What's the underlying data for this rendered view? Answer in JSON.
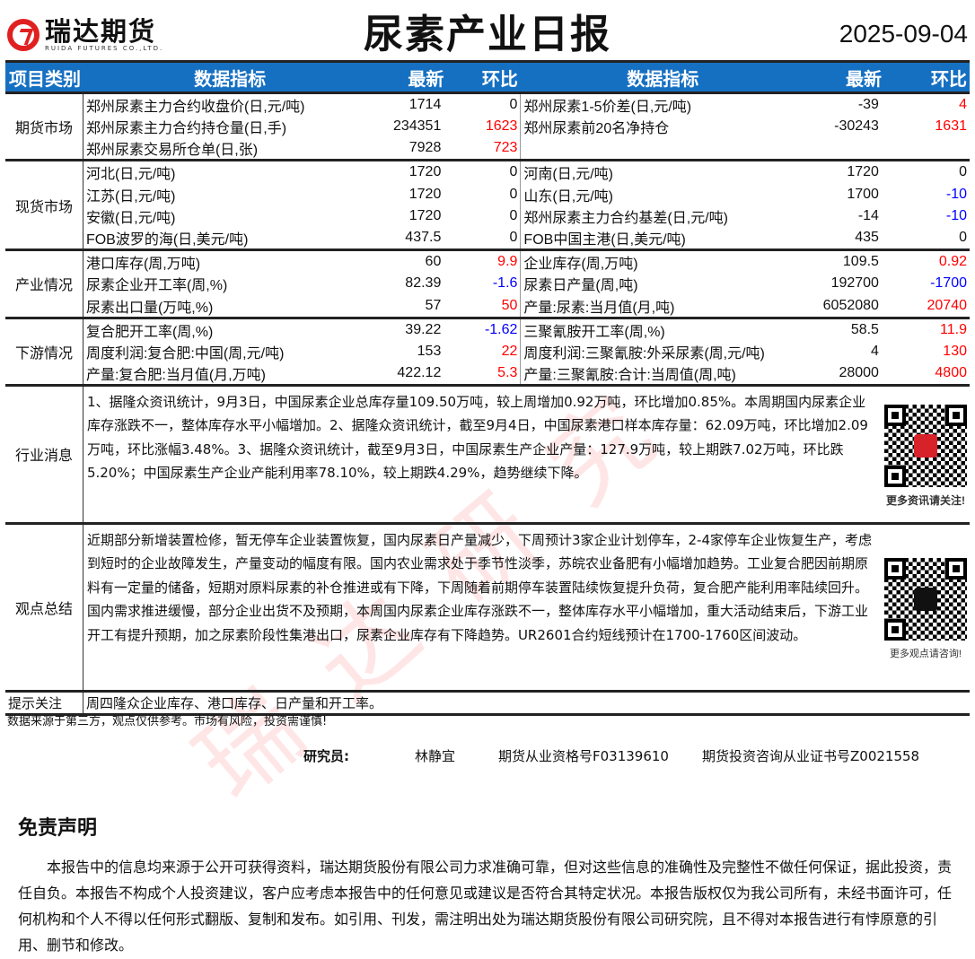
{
  "header": {
    "logo_cn": "瑞达期货",
    "logo_en": "RUIDA FUTURES CO.,LTD.",
    "title": "尿素产业日报",
    "date": "2025-09-04"
  },
  "table_header": {
    "category": "项目类别",
    "indicator": "数据指标",
    "latest": "最新",
    "change": "环比"
  },
  "colors": {
    "header_bg": "#1670c2",
    "up": "#ff0000",
    "down": "#0000ff"
  },
  "sections": [
    {
      "category": "期货市场",
      "rows": [
        {
          "l": [
            "郑州尿素主力合约收盘价(日,元/吨)",
            "1714",
            "0"
          ],
          "r": [
            "郑州尿素1-5价差(日,元/吨)",
            "-39",
            "4"
          ]
        },
        {
          "l": [
            "郑州尿素主力合约持仓量(日,手)",
            "234351",
            "1623"
          ],
          "r": [
            "郑州尿素前20名净持仓",
            "-30243",
            "1631"
          ]
        },
        {
          "l": [
            "郑州尿素交易所仓单(日,张)",
            "7928",
            "723"
          ],
          "r": [
            "",
            "",
            ""
          ]
        }
      ]
    },
    {
      "category": "现货市场",
      "rows": [
        {
          "l": [
            "河北(日,元/吨)",
            "1720",
            "0"
          ],
          "r": [
            "河南(日,元/吨)",
            "1720",
            "0"
          ]
        },
        {
          "l": [
            "江苏(日,元/吨)",
            "1720",
            "0"
          ],
          "r": [
            "山东(日,元/吨)",
            "1700",
            "-10"
          ]
        },
        {
          "l": [
            "安徽(日,元/吨)",
            "1720",
            "0"
          ],
          "r": [
            "郑州尿素主力合约基差(日,元/吨)",
            "-14",
            "-10"
          ]
        },
        {
          "l": [
            "FOB波罗的海(日,美元/吨)",
            "437.5",
            "0"
          ],
          "r": [
            "FOB中国主港(日,美元/吨)",
            "435",
            "0"
          ]
        }
      ]
    },
    {
      "category": "产业情况",
      "rows": [
        {
          "l": [
            "港口库存(周,万吨)",
            "60",
            "9.9"
          ],
          "r": [
            "企业库存(周,万吨)",
            "109.5",
            "0.92"
          ]
        },
        {
          "l": [
            "尿素企业开工率(周,%)",
            "82.39",
            "-1.6"
          ],
          "r": [
            "尿素日产量(周,吨)",
            "192700",
            "-1700"
          ]
        },
        {
          "l": [
            "尿素出口量(万吨,%)",
            "57",
            "50"
          ],
          "r": [
            "产量:尿素:当月值(月,吨)",
            "6052080",
            "20740"
          ]
        }
      ]
    },
    {
      "category": "下游情况",
      "rows": [
        {
          "l": [
            "复合肥开工率(周,%)",
            "39.22",
            "-1.62"
          ],
          "r": [
            "三聚氰胺开工率(周,%)",
            "58.5",
            "11.9"
          ]
        },
        {
          "l": [
            "周度利润:复合肥:中国(周,元/吨)",
            "153",
            "22"
          ],
          "r": [
            "周度利润:三聚氰胺:外采尿素(周,元/吨)",
            "4",
            "130"
          ]
        },
        {
          "l": [
            "产量:复合肥:当月值(月,万吨)",
            "422.12",
            "5.3"
          ],
          "r": [
            "产量:三聚氰胺:合计:当周值(周,吨)",
            "28000",
            "4800"
          ]
        }
      ]
    }
  ],
  "news": {
    "label": "行业消息",
    "text": "1、据隆众资讯统计，9月3日，中国尿素企业总库存量109.50万吨，较上周增加0.92万吨，环比增加0.85%。本周期国内尿素企业库存涨跌不一，整体库存水平小幅增加。2、据隆众资讯统计，截至9月4日，中国尿素港口样本库存量：62.09万吨，环比增加2.09万吨，环比涨幅3.48%。3、据隆众资讯统计，截至9月3日，中国尿素生产企业产量：127.9万吨，较上期跌7.02万吨，环比跌5.20%；中国尿素生产企业产能利用率78.10%，较上期跌4.29%，趋势继续下降。",
    "qr_caption": "更多资讯请关注!"
  },
  "view": {
    "label": "观点总结",
    "text": "近期部分新增装置检修，暂无停车企业装置恢复，国内尿素日产量减少，下周预计3家企业计划停车，2-4家停车企业恢复生产，考虑到短时的企业故障发生，产量变动的幅度有限。国内农业需求处于季节性淡季，苏皖农业备肥有小幅增加趋势。工业复合肥因前期原料有一定量的储备，短期对原料尿素的补仓推进或有下降，下周随着前期停车装置陆续恢复提升负荷，复合肥产能利用率陆续回升。国内需求推进缓慢，部分企业出货不及预期，本周国内尿素企业库存涨跌不一，整体库存水平小幅增加，重大活动结束后，下游工业开工有提升预期，加之尿素阶段性集港出口，尿素企业库存有下降趋势。UR2601合约短线预计在1700-1760区间波动。",
    "qr_caption": "更多观点请咨询!"
  },
  "tips": {
    "label": "提示关注",
    "text": "周四隆众企业库存、港口库存、日产量和开工率。"
  },
  "footnote": "数据来源于第三方，观点仅供参考。市场有风险，投资需谨慎!",
  "researcher": {
    "label": "研究员:",
    "name": "林静宜",
    "qualification": "期货从业资格号F03139610",
    "consult": "期货投资咨询从业证书号Z0021558"
  },
  "disclaimer": {
    "title": "免责声明",
    "text": "本报告中的信息均来源于公开可获得资料，瑞达期货股份有限公司力求准确可靠，但对这些信息的准确性及完整性不做任何保证，据此投资，责任自负。本报告不构成个人投资建议，客户应考虑本报告中的任何意见或建议是否符合其特定状况。本报告版权仅为我公司所有，未经书面许可，任何机构和个人不得以任何形式翻版、复制和发布。如引用、刊发，需注明出处为瑞达期货股份有限公司研究院，且不得对本报告进行有悖原意的引用、删节和修改。"
  },
  "watermark": "瑞达研究"
}
